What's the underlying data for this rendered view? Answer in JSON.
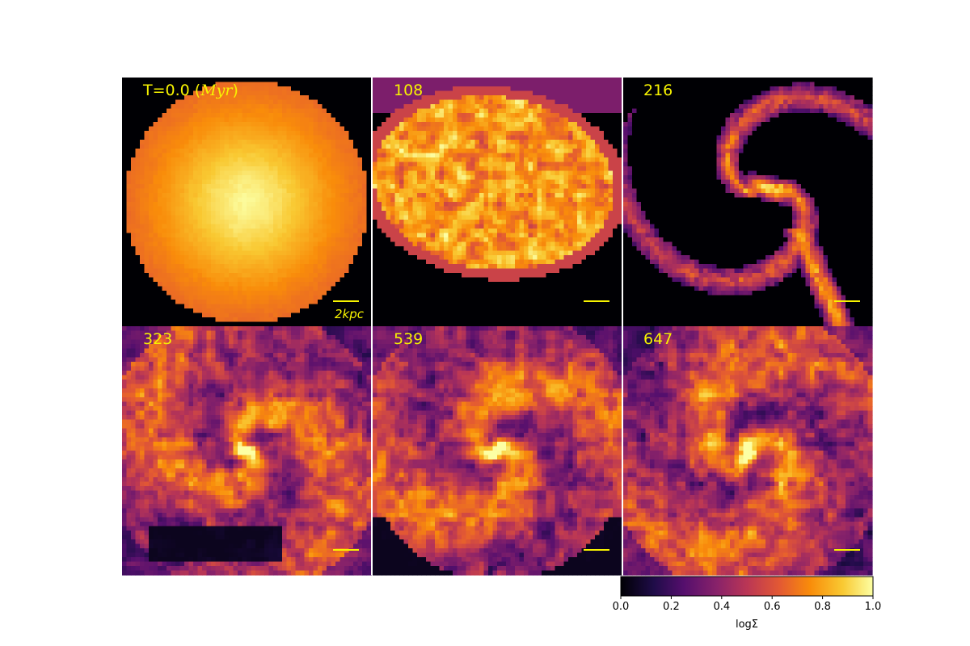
{
  "chart_data": {
    "type": "heatmap",
    "description_panels": "3x2 grid of surface density maps of a galaxy simulation at successive times",
    "panels": [
      {
        "time_myr": 0.0,
        "label": "T=0.0",
        "label_suffix": "Myr",
        "morphology": "smooth disc",
        "scale_bar": "2kpc"
      },
      {
        "time_myr": 108,
        "label": "108",
        "morphology": "clumpy ellipse"
      },
      {
        "time_myr": 216,
        "label": "216",
        "morphology": "spiral arm"
      },
      {
        "time_myr": 323,
        "label": "323",
        "morphology": "spiral with bright core"
      },
      {
        "time_myr": 539,
        "label": "539",
        "morphology": "spiral with bright core"
      },
      {
        "time_myr": 647,
        "label": "647",
        "morphology": "spiral with bright core"
      }
    ],
    "colorbar": {
      "colormap": "inferno",
      "range": [
        0.0,
        1.0
      ],
      "ticks": [
        "0.0",
        "0.2",
        "0.4",
        "0.6",
        "0.8",
        "1.0"
      ],
      "label": "logΣ"
    },
    "colors": {
      "label": "#f7f300",
      "scale_bar": "#f7f300",
      "panel_border": "#ffffff"
    }
  }
}
